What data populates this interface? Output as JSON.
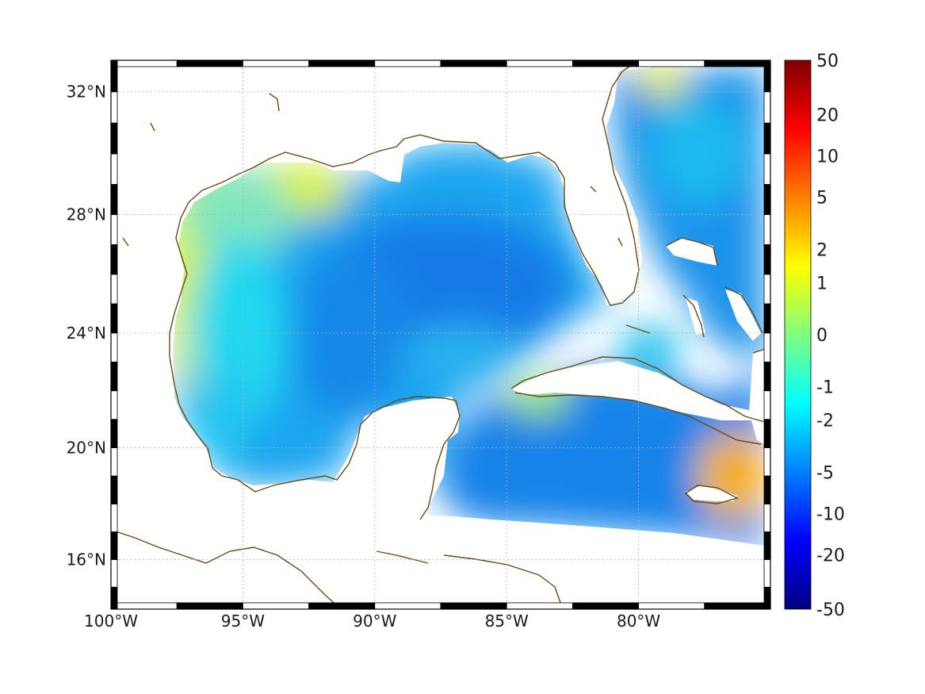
{
  "map": {
    "projection": "Mercator",
    "extent": {
      "lon": [
        -100,
        -75
      ],
      "lat": [
        14.2,
        33
      ]
    },
    "lon_ticks": [
      {
        "value": -100,
        "label": "100°W"
      },
      {
        "value": -95,
        "label": "95°W"
      },
      {
        "value": -90,
        "label": "90°W"
      },
      {
        "value": -85,
        "label": "85°W"
      },
      {
        "value": -80,
        "label": "80°W"
      }
    ],
    "lat_ticks": [
      {
        "value": 32,
        "label": "32°N"
      },
      {
        "value": 28,
        "label": "28°N"
      },
      {
        "value": 24,
        "label": "24°N"
      },
      {
        "value": 20,
        "label": "20°N"
      },
      {
        "value": 16,
        "label": "16°N"
      }
    ],
    "grid": "dotted",
    "frame": "alternating black/white",
    "coastline_color": "#6b4a12",
    "land_color": "#ffffff",
    "field_colormap": "jet"
  },
  "colorbar": {
    "labels": [
      "50",
      "20",
      "10",
      "5",
      "2",
      "1",
      "0",
      "-1",
      "-2",
      "-5",
      "-10",
      "-20",
      "-50"
    ],
    "colormap": "jet"
  }
}
